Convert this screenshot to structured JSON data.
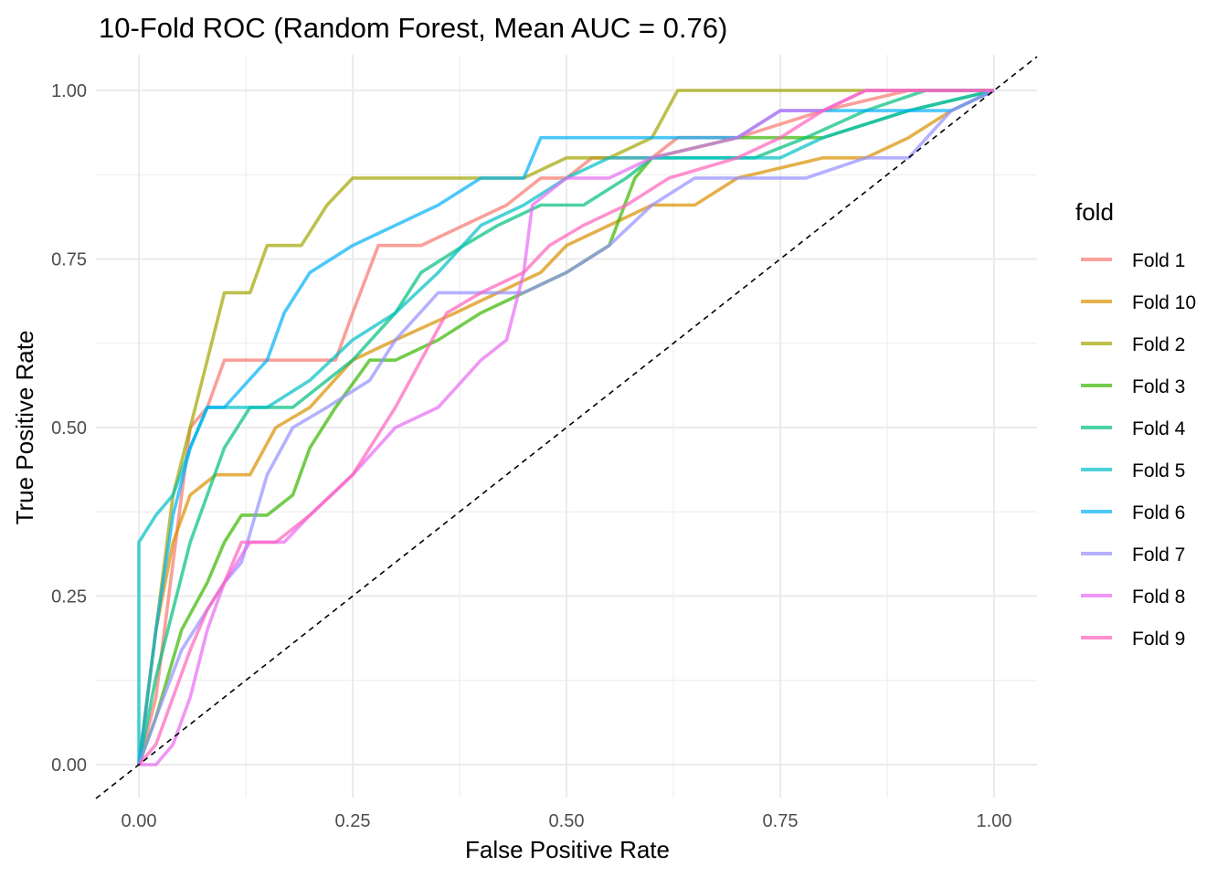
{
  "chart_data": {
    "type": "line",
    "title": "10-Fold ROC (Random Forest, Mean AUC = 0.76)",
    "xlabel": "False Positive Rate",
    "ylabel": "True Positive Rate",
    "xlim": [
      0,
      1
    ],
    "ylim": [
      0,
      1
    ],
    "x_ticks": [
      0,
      0.25,
      0.5,
      0.75,
      1
    ],
    "y_ticks": [
      0,
      0.25,
      0.5,
      0.75,
      1
    ],
    "x_tick_labels": [
      "0.00",
      "0.25",
      "0.50",
      "0.75",
      "1.00"
    ],
    "y_tick_labels": [
      "0.00",
      "0.25",
      "0.50",
      "0.75",
      "1.00"
    ],
    "grid": true,
    "legend": {
      "title": "fold",
      "position": "right"
    },
    "reference_line": {
      "type": "diagonal",
      "style": "dashed",
      "color": "#000000"
    },
    "series": [
      {
        "name": "Fold 1",
        "color": "#F8766D",
        "points": [
          [
            0,
            0
          ],
          [
            0.02,
            0.1
          ],
          [
            0.04,
            0.3
          ],
          [
            0.06,
            0.5
          ],
          [
            0.08,
            0.53
          ],
          [
            0.1,
            0.6
          ],
          [
            0.15,
            0.6
          ],
          [
            0.2,
            0.6
          ],
          [
            0.23,
            0.6
          ],
          [
            0.25,
            0.67
          ],
          [
            0.28,
            0.77
          ],
          [
            0.33,
            0.77
          ],
          [
            0.38,
            0.8
          ],
          [
            0.43,
            0.83
          ],
          [
            0.47,
            0.87
          ],
          [
            0.5,
            0.87
          ],
          [
            0.53,
            0.9
          ],
          [
            0.6,
            0.9
          ],
          [
            0.63,
            0.93
          ],
          [
            0.7,
            0.93
          ],
          [
            0.8,
            0.97
          ],
          [
            0.9,
            1
          ],
          [
            1,
            1
          ]
        ]
      },
      {
        "name": "Fold 10",
        "color": "#D89000",
        "points": [
          [
            0,
            0
          ],
          [
            0.02,
            0.2
          ],
          [
            0.04,
            0.33
          ],
          [
            0.06,
            0.4
          ],
          [
            0.09,
            0.43
          ],
          [
            0.13,
            0.43
          ],
          [
            0.16,
            0.5
          ],
          [
            0.2,
            0.53
          ],
          [
            0.25,
            0.6
          ],
          [
            0.3,
            0.63
          ],
          [
            0.37,
            0.67
          ],
          [
            0.42,
            0.7
          ],
          [
            0.47,
            0.73
          ],
          [
            0.5,
            0.77
          ],
          [
            0.55,
            0.8
          ],
          [
            0.6,
            0.83
          ],
          [
            0.65,
            0.83
          ],
          [
            0.7,
            0.87
          ],
          [
            0.8,
            0.9
          ],
          [
            0.85,
            0.9
          ],
          [
            0.9,
            0.93
          ],
          [
            0.95,
            0.97
          ],
          [
            1,
            1
          ]
        ]
      },
      {
        "name": "Fold 2",
        "color": "#A3A500",
        "points": [
          [
            0,
            0
          ],
          [
            0.02,
            0.2
          ],
          [
            0.04,
            0.4
          ],
          [
            0.06,
            0.5
          ],
          [
            0.08,
            0.6
          ],
          [
            0.1,
            0.7
          ],
          [
            0.13,
            0.7
          ],
          [
            0.15,
            0.77
          ],
          [
            0.19,
            0.77
          ],
          [
            0.22,
            0.83
          ],
          [
            0.25,
            0.87
          ],
          [
            0.35,
            0.87
          ],
          [
            0.4,
            0.87
          ],
          [
            0.45,
            0.87
          ],
          [
            0.5,
            0.9
          ],
          [
            0.55,
            0.9
          ],
          [
            0.6,
            0.93
          ],
          [
            0.63,
            1
          ],
          [
            0.7,
            1
          ],
          [
            0.8,
            1
          ],
          [
            1,
            1
          ]
        ]
      },
      {
        "name": "Fold 3",
        "color": "#39B600",
        "points": [
          [
            0,
            0
          ],
          [
            0.02,
            0.07
          ],
          [
            0.05,
            0.2
          ],
          [
            0.08,
            0.27
          ],
          [
            0.1,
            0.33
          ],
          [
            0.12,
            0.37
          ],
          [
            0.15,
            0.37
          ],
          [
            0.18,
            0.4
          ],
          [
            0.2,
            0.47
          ],
          [
            0.23,
            0.53
          ],
          [
            0.27,
            0.6
          ],
          [
            0.3,
            0.6
          ],
          [
            0.35,
            0.63
          ],
          [
            0.4,
            0.67
          ],
          [
            0.45,
            0.7
          ],
          [
            0.5,
            0.73
          ],
          [
            0.55,
            0.77
          ],
          [
            0.58,
            0.87
          ],
          [
            0.6,
            0.9
          ],
          [
            0.7,
            0.93
          ],
          [
            0.8,
            0.93
          ],
          [
            0.9,
            0.97
          ],
          [
            1,
            1
          ]
        ]
      },
      {
        "name": "Fold 4",
        "color": "#00BF7D",
        "points": [
          [
            0,
            0
          ],
          [
            0.02,
            0.13
          ],
          [
            0.04,
            0.23
          ],
          [
            0.06,
            0.33
          ],
          [
            0.08,
            0.4
          ],
          [
            0.1,
            0.47
          ],
          [
            0.13,
            0.53
          ],
          [
            0.18,
            0.53
          ],
          [
            0.22,
            0.57
          ],
          [
            0.25,
            0.6
          ],
          [
            0.3,
            0.67
          ],
          [
            0.33,
            0.73
          ],
          [
            0.38,
            0.77
          ],
          [
            0.42,
            0.8
          ],
          [
            0.47,
            0.83
          ],
          [
            0.52,
            0.83
          ],
          [
            0.57,
            0.87
          ],
          [
            0.6,
            0.9
          ],
          [
            0.65,
            0.9
          ],
          [
            0.72,
            0.9
          ],
          [
            0.78,
            0.93
          ],
          [
            0.85,
            0.97
          ],
          [
            0.92,
            1
          ],
          [
            1,
            1
          ]
        ]
      },
      {
        "name": "Fold 5",
        "color": "#00BFC4",
        "points": [
          [
            0,
            0
          ],
          [
            0,
            0.33
          ],
          [
            0.02,
            0.37
          ],
          [
            0.04,
            0.4
          ],
          [
            0.06,
            0.47
          ],
          [
            0.08,
            0.53
          ],
          [
            0.12,
            0.53
          ],
          [
            0.15,
            0.53
          ],
          [
            0.2,
            0.57
          ],
          [
            0.25,
            0.63
          ],
          [
            0.3,
            0.67
          ],
          [
            0.35,
            0.73
          ],
          [
            0.4,
            0.8
          ],
          [
            0.45,
            0.83
          ],
          [
            0.5,
            0.87
          ],
          [
            0.55,
            0.9
          ],
          [
            0.6,
            0.9
          ],
          [
            0.65,
            0.9
          ],
          [
            0.7,
            0.9
          ],
          [
            0.75,
            0.9
          ],
          [
            0.8,
            0.93
          ],
          [
            0.9,
            0.97
          ],
          [
            1,
            1
          ]
        ]
      },
      {
        "name": "Fold 6",
        "color": "#00B0F6",
        "points": [
          [
            0,
            0
          ],
          [
            0.02,
            0.2
          ],
          [
            0.04,
            0.37
          ],
          [
            0.06,
            0.47
          ],
          [
            0.08,
            0.53
          ],
          [
            0.1,
            0.53
          ],
          [
            0.15,
            0.6
          ],
          [
            0.17,
            0.67
          ],
          [
            0.2,
            0.73
          ],
          [
            0.25,
            0.77
          ],
          [
            0.3,
            0.8
          ],
          [
            0.35,
            0.83
          ],
          [
            0.4,
            0.87
          ],
          [
            0.45,
            0.87
          ],
          [
            0.47,
            0.93
          ],
          [
            0.55,
            0.93
          ],
          [
            0.6,
            0.93
          ],
          [
            0.7,
            0.93
          ],
          [
            0.75,
            0.97
          ],
          [
            0.85,
            0.97
          ],
          [
            0.95,
            0.97
          ],
          [
            1,
            1
          ]
        ]
      },
      {
        "name": "Fold 7",
        "color": "#9590FF",
        "points": [
          [
            0,
            0
          ],
          [
            0.02,
            0.07
          ],
          [
            0.05,
            0.17
          ],
          [
            0.08,
            0.23
          ],
          [
            0.1,
            0.27
          ],
          [
            0.12,
            0.3
          ],
          [
            0.15,
            0.43
          ],
          [
            0.18,
            0.5
          ],
          [
            0.22,
            0.53
          ],
          [
            0.27,
            0.57
          ],
          [
            0.3,
            0.63
          ],
          [
            0.35,
            0.7
          ],
          [
            0.4,
            0.7
          ],
          [
            0.45,
            0.7
          ],
          [
            0.5,
            0.73
          ],
          [
            0.55,
            0.77
          ],
          [
            0.6,
            0.83
          ],
          [
            0.65,
            0.87
          ],
          [
            0.72,
            0.87
          ],
          [
            0.78,
            0.87
          ],
          [
            0.85,
            0.9
          ],
          [
            0.9,
            0.9
          ],
          [
            0.95,
            0.97
          ],
          [
            1,
            1
          ]
        ]
      },
      {
        "name": "Fold 8",
        "color": "#E76BF3",
        "points": [
          [
            0,
            0
          ],
          [
            0.02,
            0
          ],
          [
            0.04,
            0.03
          ],
          [
            0.06,
            0.1
          ],
          [
            0.08,
            0.2
          ],
          [
            0.1,
            0.27
          ],
          [
            0.13,
            0.33
          ],
          [
            0.17,
            0.33
          ],
          [
            0.2,
            0.37
          ],
          [
            0.25,
            0.43
          ],
          [
            0.3,
            0.5
          ],
          [
            0.35,
            0.53
          ],
          [
            0.4,
            0.6
          ],
          [
            0.43,
            0.63
          ],
          [
            0.45,
            0.73
          ],
          [
            0.46,
            0.83
          ],
          [
            0.5,
            0.87
          ],
          [
            0.55,
            0.87
          ],
          [
            0.6,
            0.9
          ],
          [
            0.7,
            0.93
          ],
          [
            0.75,
            0.97
          ],
          [
            0.8,
            0.97
          ],
          [
            0.85,
            1
          ],
          [
            0.95,
            1
          ],
          [
            1,
            1
          ]
        ]
      },
      {
        "name": "Fold 9",
        "color": "#FF62BC",
        "points": [
          [
            0,
            0
          ],
          [
            0.02,
            0.03
          ],
          [
            0.04,
            0.1
          ],
          [
            0.06,
            0.17
          ],
          [
            0.08,
            0.23
          ],
          [
            0.1,
            0.27
          ],
          [
            0.12,
            0.33
          ],
          [
            0.16,
            0.33
          ],
          [
            0.2,
            0.37
          ],
          [
            0.25,
            0.43
          ],
          [
            0.3,
            0.53
          ],
          [
            0.33,
            0.6
          ],
          [
            0.36,
            0.67
          ],
          [
            0.4,
            0.7
          ],
          [
            0.45,
            0.73
          ],
          [
            0.48,
            0.77
          ],
          [
            0.52,
            0.8
          ],
          [
            0.57,
            0.83
          ],
          [
            0.62,
            0.87
          ],
          [
            0.7,
            0.9
          ],
          [
            0.75,
            0.93
          ],
          [
            0.8,
            0.97
          ],
          [
            0.85,
            1
          ],
          [
            1,
            1
          ]
        ]
      }
    ]
  }
}
